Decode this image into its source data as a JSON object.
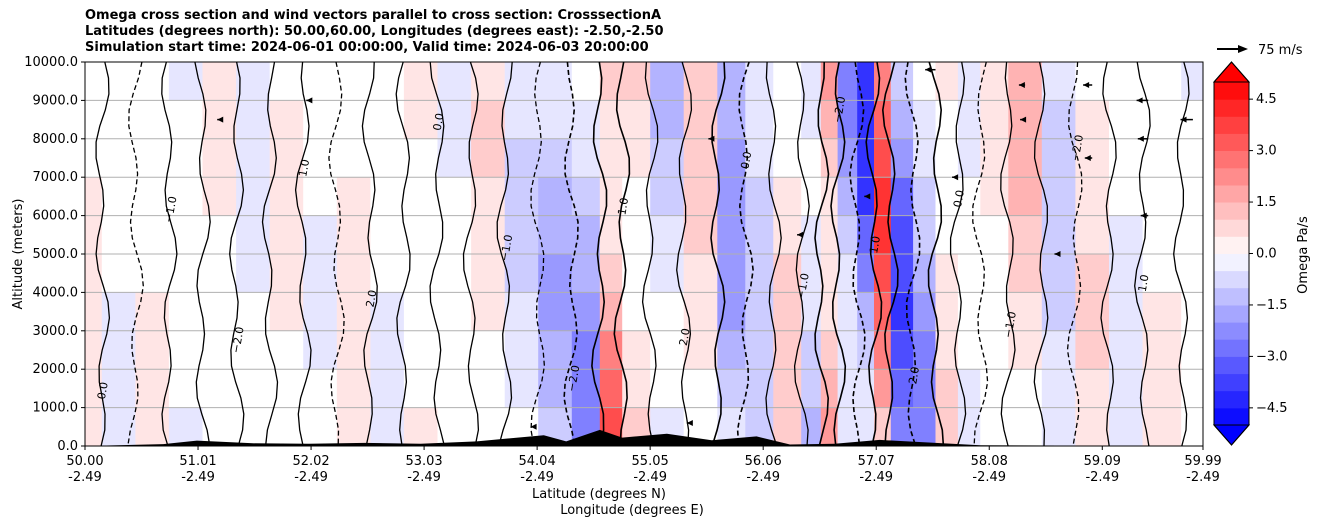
{
  "titles": {
    "line1": "Omega cross section and wind vectors parallel to cross section: CrosssectionA",
    "line2": "Latitudes (degrees north): 50.00,60.00, Longitudes (degrees east): -2.50,-2.50",
    "line3": "Simulation start time: 2024-06-01 00:00:00, Valid time: 2024-06-03 20:00:00"
  },
  "quiver_key": "75 m/s",
  "colorbar": {
    "label": "Omega Pa/s",
    "ticks": [
      "4.5",
      "3.0",
      "1.5",
      "0.0",
      "−1.5",
      "−3.0",
      "−4.5"
    ],
    "tick_values": [
      4.5,
      3.0,
      1.5,
      0.0,
      -1.5,
      -3.0,
      -4.5
    ],
    "range": [
      -5.0,
      5.0
    ],
    "extend": "both",
    "colormap": "bwr",
    "colors": {
      "max": "#ff0000",
      "mid": "#ffffff",
      "min": "#0000ff"
    }
  },
  "chart_data": {
    "type": "heatmap",
    "xlabel": "Latitude (degrees N)",
    "xlabel2": "Longitude (degrees E)",
    "ylabel": "Altitude (meters)",
    "ylim": [
      0,
      10000
    ],
    "xlim": [
      50.0,
      59.99
    ],
    "grid": "horizontal",
    "x_ticks": [
      {
        "lat": "50.00",
        "lon": "-2.49"
      },
      {
        "lat": "51.01",
        "lon": "-2.49"
      },
      {
        "lat": "52.02",
        "lon": "-2.49"
      },
      {
        "lat": "53.03",
        "lon": "-2.49"
      },
      {
        "lat": "54.04",
        "lon": "-2.49"
      },
      {
        "lat": "55.05",
        "lon": "-2.49"
      },
      {
        "lat": "56.06",
        "lon": "-2.49"
      },
      {
        "lat": "57.07",
        "lon": "-2.49"
      },
      {
        "lat": "58.08",
        "lon": "-2.49"
      },
      {
        "lat": "59.09",
        "lon": "-2.49"
      },
      {
        "lat": "59.99",
        "lon": "-2.49"
      }
    ],
    "y_ticks": [
      "0.0",
      "1000.0",
      "2000.0",
      "3000.0",
      "4000.0",
      "5000.0",
      "6000.0",
      "7000.0",
      "8000.0",
      "9000.0",
      "10000.0"
    ],
    "omega_bands": [
      {
        "lat": 50.0,
        "omega": 0.4
      },
      {
        "lat": 50.3,
        "omega": -0.3
      },
      {
        "lat": 50.6,
        "omega": 0.5
      },
      {
        "lat": 50.9,
        "omega": -0.4
      },
      {
        "lat": 51.2,
        "omega": 0.6
      },
      {
        "lat": 51.5,
        "omega": -0.5
      },
      {
        "lat": 51.8,
        "omega": 0.4
      },
      {
        "lat": 52.1,
        "omega": -0.3
      },
      {
        "lat": 52.4,
        "omega": 0.7
      },
      {
        "lat": 52.7,
        "omega": -0.6
      },
      {
        "lat": 53.0,
        "omega": 0.5
      },
      {
        "lat": 53.3,
        "omega": -0.4
      },
      {
        "lat": 53.6,
        "omega": 0.8
      },
      {
        "lat": 53.9,
        "omega": -0.9
      },
      {
        "lat": 54.2,
        "omega": -1.8
      },
      {
        "lat": 54.5,
        "omega": -2.4
      },
      {
        "lat": 54.7,
        "omega": 3.5
      },
      {
        "lat": 54.9,
        "omega": 1.2
      },
      {
        "lat": 55.2,
        "omega": -1.5
      },
      {
        "lat": 55.5,
        "omega": 1.0
      },
      {
        "lat": 55.8,
        "omega": -2.2
      },
      {
        "lat": 56.0,
        "omega": -1.2
      },
      {
        "lat": 56.3,
        "omega": 1.1
      },
      {
        "lat": 56.5,
        "omega": -1.4
      },
      {
        "lat": 56.65,
        "omega": 2.8
      },
      {
        "lat": 56.8,
        "omega": -2.6
      },
      {
        "lat": 57.0,
        "omega": -4.2
      },
      {
        "lat": 57.1,
        "omega": 4.0
      },
      {
        "lat": 57.3,
        "omega": -3.8
      },
      {
        "lat": 57.5,
        "omega": -2.4
      },
      {
        "lat": 57.7,
        "omega": 1.0
      },
      {
        "lat": 57.9,
        "omega": -0.8
      },
      {
        "lat": 58.1,
        "omega": 0.6
      },
      {
        "lat": 58.4,
        "omega": 1.4
      },
      {
        "lat": 58.7,
        "omega": -1.1
      },
      {
        "lat": 59.0,
        "omega": 0.8
      },
      {
        "lat": 59.3,
        "omega": -0.6
      },
      {
        "lat": 59.6,
        "omega": 0.7
      },
      {
        "lat": 59.99,
        "omega": -0.4
      }
    ],
    "contour_labels": [
      "0.0",
      "1.0",
      "−1.0",
      "2.0",
      "−2.0"
    ],
    "terrain": [
      {
        "lat": 50.0,
        "alt": 0
      },
      {
        "lat": 50.7,
        "alt": 50
      },
      {
        "lat": 51.0,
        "alt": 140
      },
      {
        "lat": 51.5,
        "alt": 70
      },
      {
        "lat": 52.0,
        "alt": 60
      },
      {
        "lat": 52.5,
        "alt": 80
      },
      {
        "lat": 53.0,
        "alt": 60
      },
      {
        "lat": 53.5,
        "alt": 120
      },
      {
        "lat": 54.1,
        "alt": 280
      },
      {
        "lat": 54.3,
        "alt": 120
      },
      {
        "lat": 54.6,
        "alt": 420
      },
      {
        "lat": 54.8,
        "alt": 220
      },
      {
        "lat": 55.2,
        "alt": 320
      },
      {
        "lat": 55.6,
        "alt": 150
      },
      {
        "lat": 56.0,
        "alt": 250
      },
      {
        "lat": 56.3,
        "alt": 40
      },
      {
        "lat": 56.7,
        "alt": 60
      },
      {
        "lat": 57.1,
        "alt": 160
      },
      {
        "lat": 57.6,
        "alt": 80
      },
      {
        "lat": 58.0,
        "alt": 20
      },
      {
        "lat": 59.99,
        "alt": 0
      }
    ],
    "wind_vectors": [
      {
        "lat": 57.6,
        "alt": 9800,
        "speed": -25
      },
      {
        "lat": 58.4,
        "alt": 9400,
        "speed": -15
      },
      {
        "lat": 59.0,
        "alt": 9400,
        "speed": -22
      },
      {
        "lat": 59.5,
        "alt": 9000,
        "speed": -28
      },
      {
        "lat": 59.9,
        "alt": 8500,
        "speed": -30
      },
      {
        "lat": 59.5,
        "alt": 8000,
        "speed": -25
      },
      {
        "lat": 59.0,
        "alt": 7500,
        "speed": -18
      },
      {
        "lat": 58.4,
        "alt": 8500,
        "speed": -12
      },
      {
        "lat": 57.8,
        "alt": 7000,
        "speed": -14
      },
      {
        "lat": 57.0,
        "alt": 6500,
        "speed": -10
      },
      {
        "lat": 56.4,
        "alt": 5500,
        "speed": -10
      },
      {
        "lat": 55.6,
        "alt": 8000,
        "speed": -8
      },
      {
        "lat": 59.5,
        "alt": 6000,
        "speed": -18
      },
      {
        "lat": 58.7,
        "alt": 5000,
        "speed": -10
      },
      {
        "lat": 52.0,
        "alt": 9000,
        "speed": -6
      },
      {
        "lat": 51.2,
        "alt": 8500,
        "speed": -5
      },
      {
        "lat": 54.0,
        "alt": 500,
        "speed": -5
      },
      {
        "lat": 55.4,
        "alt": 600,
        "speed": -6
      }
    ]
  }
}
